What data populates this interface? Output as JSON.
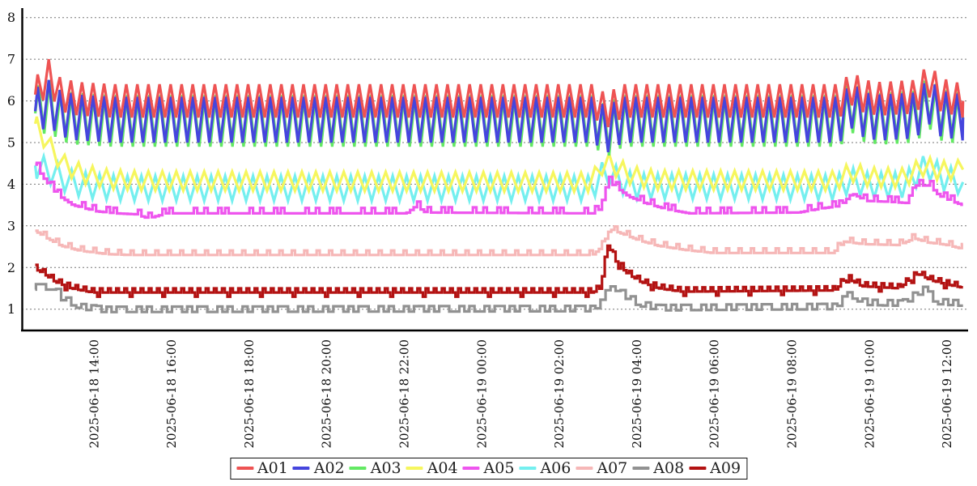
{
  "chart_data": {
    "type": "line",
    "title": "",
    "xlabel": "",
    "ylabel": "",
    "grid": "dashed-horizontal",
    "background": "#ffffff",
    "axis_color": "#000000",
    "grid_color": "#777777",
    "tick_text_color": "#111111",
    "x_axis": {
      "start_hour": 12.5,
      "end_hour": 36.43,
      "tick_hours": [
        14,
        16,
        18,
        20,
        22,
        24,
        26,
        28,
        30,
        32,
        34,
        36
      ],
      "tick_labels": [
        "2025-06-18 14:00",
        "2025-06-18 16:00",
        "2025-06-18 18:00",
        "2025-06-18 20:00",
        "2025-06-18 22:00",
        "2025-06-19 00:00",
        "2025-06-19 02:00",
        "2025-06-19 04:00",
        "2025-06-19 06:00",
        "2025-06-19 08:00",
        "2025-06-19 10:00",
        "2025-06-19 12:00"
      ],
      "label_rotation_deg": 90
    },
    "y_axis": {
      "ticks": [
        1,
        2,
        3,
        4,
        5,
        6,
        7,
        8
      ],
      "min": 0.5,
      "max": 8.3
    },
    "legend": {
      "position": "bottom-center"
    },
    "series": [
      {
        "name": "A01",
        "color": "#ee5353",
        "style": "zigzag",
        "period_h": 0.2857,
        "phase_h": 12.85,
        "amplitude": 0.4,
        "center": [
          [
            12.5,
            6.15
          ],
          [
            12.85,
            6.6
          ],
          [
            13.15,
            6.15
          ],
          [
            13.6,
            6.05
          ],
          [
            14.5,
            6.0
          ],
          [
            26.9,
            6.0
          ],
          [
            27.1,
            5.85
          ],
          [
            27.25,
            5.75
          ],
          [
            27.45,
            5.9
          ],
          [
            27.7,
            6.0
          ],
          [
            33.25,
            6.0
          ],
          [
            33.55,
            6.3
          ],
          [
            33.9,
            6.1
          ],
          [
            34.3,
            6.05
          ],
          [
            35.2,
            6.1
          ],
          [
            35.55,
            6.5
          ],
          [
            35.85,
            6.15
          ],
          [
            36.43,
            6.0
          ]
        ]
      },
      {
        "name": "A02",
        "color": "#4545dd",
        "style": "zigzag",
        "period_h": 0.2857,
        "phase_h": 12.85,
        "amplitude": 0.55,
        "center": [
          [
            12.5,
            5.75
          ],
          [
            12.85,
            5.95
          ],
          [
            13.15,
            5.7
          ],
          [
            13.6,
            5.6
          ],
          [
            14.5,
            5.55
          ],
          [
            26.9,
            5.55
          ],
          [
            27.1,
            5.4
          ],
          [
            27.25,
            5.3
          ],
          [
            27.45,
            5.45
          ],
          [
            27.7,
            5.55
          ],
          [
            33.25,
            5.55
          ],
          [
            33.55,
            5.9
          ],
          [
            33.9,
            5.65
          ],
          [
            34.3,
            5.6
          ],
          [
            35.2,
            5.65
          ],
          [
            35.55,
            6.0
          ],
          [
            35.85,
            5.7
          ],
          [
            36.43,
            5.6
          ]
        ]
      },
      {
        "name": "A03",
        "color": "#63e963",
        "style": "zigzag",
        "period_h": 0.2857,
        "phase_h": 12.875,
        "amplitude": 0.62,
        "center": [
          [
            12.5,
            5.7
          ],
          [
            12.85,
            5.9
          ],
          [
            13.15,
            5.65
          ],
          [
            13.6,
            5.57
          ],
          [
            14.5,
            5.52
          ],
          [
            26.9,
            5.52
          ],
          [
            27.1,
            5.37
          ],
          [
            27.25,
            5.27
          ],
          [
            27.45,
            5.42
          ],
          [
            27.7,
            5.52
          ],
          [
            33.25,
            5.52
          ],
          [
            33.55,
            5.87
          ],
          [
            33.9,
            5.62
          ],
          [
            34.3,
            5.57
          ],
          [
            35.2,
            5.62
          ],
          [
            35.55,
            5.97
          ],
          [
            35.85,
            5.67
          ],
          [
            36.43,
            5.57
          ]
        ]
      },
      {
        "name": "A04",
        "color": "#f6f65e",
        "style": "zigzag",
        "period_h": 0.36,
        "phase_h": 12.9,
        "amplitude": 0.23,
        "center": [
          [
            12.5,
            5.45
          ],
          [
            12.8,
            5.0
          ],
          [
            13.2,
            4.5
          ],
          [
            13.7,
            4.25
          ],
          [
            14.4,
            4.12
          ],
          [
            15.2,
            4.08
          ],
          [
            26.85,
            4.05
          ],
          [
            27.2,
            4.57
          ],
          [
            27.5,
            4.4
          ],
          [
            27.9,
            4.2
          ],
          [
            28.5,
            4.1
          ],
          [
            33.15,
            4.08
          ],
          [
            33.55,
            4.3
          ],
          [
            34.0,
            4.17
          ],
          [
            34.9,
            4.15
          ],
          [
            35.45,
            4.45
          ],
          [
            35.8,
            4.32
          ],
          [
            36.43,
            4.35
          ]
        ]
      },
      {
        "name": "A05",
        "color": "#ee55ee",
        "style": "step",
        "step_h": 0.09,
        "amplitude": 0.13,
        "pattern": [
          0,
          0,
          0,
          1,
          0,
          0,
          1,
          0,
          0,
          0,
          1,
          0,
          1,
          0,
          0,
          0
        ],
        "center": [
          [
            12.5,
            4.5
          ],
          [
            12.75,
            4.15
          ],
          [
            13.1,
            3.75
          ],
          [
            13.5,
            3.5
          ],
          [
            14.1,
            3.35
          ],
          [
            14.6,
            3.3
          ],
          [
            15.1,
            3.28
          ],
          [
            15.45,
            3.18
          ],
          [
            15.9,
            3.3
          ],
          [
            22.1,
            3.3
          ],
          [
            22.35,
            3.48
          ],
          [
            22.6,
            3.32
          ],
          [
            26.9,
            3.3
          ],
          [
            27.1,
            3.4
          ],
          [
            27.3,
            4.08
          ],
          [
            27.55,
            3.9
          ],
          [
            27.85,
            3.7
          ],
          [
            28.25,
            3.55
          ],
          [
            28.8,
            3.4
          ],
          [
            29.4,
            3.3
          ],
          [
            32.2,
            3.32
          ],
          [
            32.8,
            3.42
          ],
          [
            33.3,
            3.48
          ],
          [
            33.6,
            3.78
          ],
          [
            33.95,
            3.6
          ],
          [
            34.5,
            3.58
          ],
          [
            35.0,
            3.55
          ],
          [
            35.2,
            3.97
          ],
          [
            35.6,
            3.97
          ],
          [
            35.85,
            3.72
          ],
          [
            36.1,
            3.62
          ],
          [
            36.43,
            3.5
          ]
        ]
      },
      {
        "name": "A06",
        "color": "#74efef",
        "style": "zigzag",
        "period_h": 0.36,
        "phase_h": 13.08,
        "amplitude": 0.3,
        "center": [
          [
            12.5,
            4.45
          ],
          [
            12.9,
            4.3
          ],
          [
            13.4,
            4.05
          ],
          [
            14.0,
            3.95
          ],
          [
            14.8,
            3.9
          ],
          [
            26.85,
            3.9
          ],
          [
            27.2,
            4.32
          ],
          [
            27.55,
            4.1
          ],
          [
            28.0,
            3.95
          ],
          [
            33.15,
            3.92
          ],
          [
            33.55,
            4.1
          ],
          [
            34.0,
            3.97
          ],
          [
            34.9,
            3.98
          ],
          [
            35.5,
            4.45
          ],
          [
            35.9,
            4.15
          ],
          [
            36.43,
            4.05
          ]
        ]
      },
      {
        "name": "A07",
        "color": "#f6b7b7",
        "style": "step",
        "step_h": 0.08,
        "amplitude": 0.11,
        "pattern": [
          0,
          1,
          0,
          0
        ],
        "center": [
          [
            12.5,
            2.9
          ],
          [
            12.8,
            2.72
          ],
          [
            13.2,
            2.52
          ],
          [
            13.7,
            2.4
          ],
          [
            14.4,
            2.32
          ],
          [
            15.0,
            2.3
          ],
          [
            26.9,
            2.3
          ],
          [
            27.15,
            2.5
          ],
          [
            27.35,
            2.92
          ],
          [
            27.7,
            2.8
          ],
          [
            28.1,
            2.65
          ],
          [
            28.6,
            2.52
          ],
          [
            29.3,
            2.42
          ],
          [
            30.0,
            2.35
          ],
          [
            33.1,
            2.35
          ],
          [
            33.4,
            2.62
          ],
          [
            33.9,
            2.56
          ],
          [
            34.8,
            2.54
          ],
          [
            35.2,
            2.7
          ],
          [
            35.55,
            2.6
          ],
          [
            36.0,
            2.55
          ],
          [
            36.43,
            2.45
          ]
        ]
      },
      {
        "name": "A08",
        "color": "#919191",
        "style": "step",
        "step_h": 0.13,
        "amplitude": 0.13,
        "pattern": [
          1,
          0,
          1,
          0,
          1,
          1,
          0,
          0,
          1,
          0,
          1,
          0,
          0,
          1,
          0,
          1
        ],
        "center": [
          [
            12.5,
            1.47
          ],
          [
            13.0,
            1.47
          ],
          [
            13.25,
            1.2
          ],
          [
            13.7,
            1.0
          ],
          [
            14.3,
            0.93
          ],
          [
            26.9,
            0.95
          ],
          [
            27.15,
            1.1
          ],
          [
            27.4,
            1.55
          ],
          [
            27.7,
            1.3
          ],
          [
            28.1,
            1.08
          ],
          [
            28.6,
            0.97
          ],
          [
            33.15,
            1.0
          ],
          [
            33.55,
            1.3
          ],
          [
            33.95,
            1.1
          ],
          [
            34.9,
            1.08
          ],
          [
            35.45,
            1.42
          ],
          [
            35.8,
            1.12
          ],
          [
            36.43,
            1.08
          ]
        ]
      },
      {
        "name": "A09",
        "color": "#b31212",
        "style": "step",
        "step_h": 0.07,
        "amplitude": 0.1,
        "pattern": [
          0,
          1,
          0,
          0,
          1,
          0,
          -1,
          1,
          0,
          0,
          1,
          0
        ],
        "center": [
          [
            12.5,
            1.98
          ],
          [
            12.75,
            1.85
          ],
          [
            13.05,
            1.65
          ],
          [
            13.45,
            1.5
          ],
          [
            14.0,
            1.4
          ],
          [
            26.9,
            1.4
          ],
          [
            27.1,
            1.5
          ],
          [
            27.3,
            2.55
          ],
          [
            27.5,
            2.15
          ],
          [
            27.8,
            1.85
          ],
          [
            28.15,
            1.65
          ],
          [
            28.6,
            1.5
          ],
          [
            29.2,
            1.42
          ],
          [
            33.15,
            1.45
          ],
          [
            33.45,
            1.75
          ],
          [
            33.85,
            1.55
          ],
          [
            34.8,
            1.5
          ],
          [
            35.3,
            1.85
          ],
          [
            35.6,
            1.7
          ],
          [
            36.0,
            1.6
          ],
          [
            36.43,
            1.52
          ]
        ]
      }
    ],
    "annotations": {
      "event_spike_time": "2025-06-19 ~03:15",
      "late_bump_times": [
        "2025-06-19 ~09:50",
        "2025-06-19 ~11:40"
      ]
    }
  }
}
